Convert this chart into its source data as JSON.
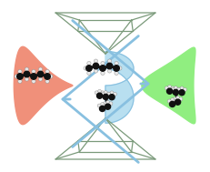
{
  "bg_color": "#ffffff",
  "drop_color": "#b8dff0",
  "drop_edge": "#88c0e0",
  "salmon_blob_color": "#f0907a",
  "green_blob_color": "#90ee80",
  "arrow_color": "#88c0e0",
  "diamond_edge_color": "#7a9a7a",
  "figsize": [
    2.32,
    1.89
  ],
  "dpi": 100
}
